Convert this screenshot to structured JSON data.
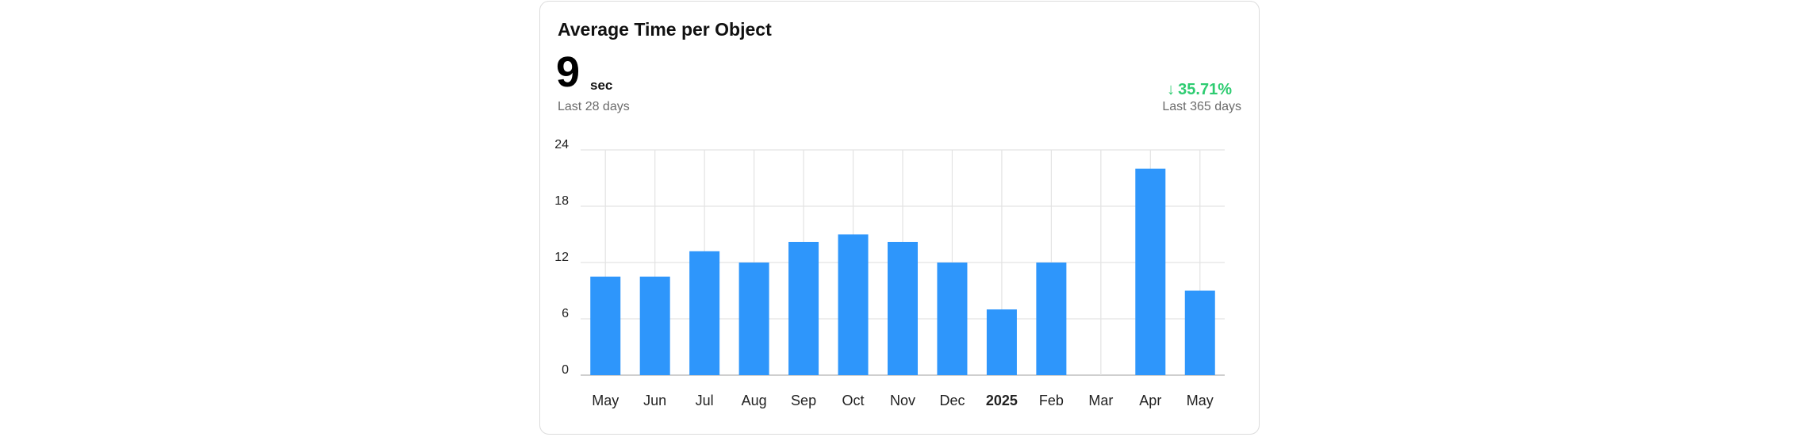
{
  "card": {
    "title": "Average Time per Object",
    "metric_value": "9",
    "metric_unit": "sec",
    "metric_period": "Last 28 days",
    "change_direction": "down",
    "change_value": "35.71%",
    "change_period": "Last 365 days",
    "change_color": "#2ecc71"
  },
  "chart_data": {
    "type": "bar",
    "categories": [
      "May",
      "Jun",
      "Jul",
      "Aug",
      "Sep",
      "Oct",
      "Nov",
      "Dec",
      "2025",
      "Feb",
      "Mar",
      "Apr",
      "May"
    ],
    "bold_categories": [
      "2025"
    ],
    "values": [
      10.5,
      10.5,
      13.2,
      12,
      14.2,
      15,
      14.2,
      12,
      7,
      12,
      0,
      22,
      9
    ],
    "ylim": [
      0,
      24
    ],
    "yticks": [
      0,
      6,
      12,
      18,
      24
    ],
    "grid": true,
    "bar_color": "#2e96fb"
  }
}
